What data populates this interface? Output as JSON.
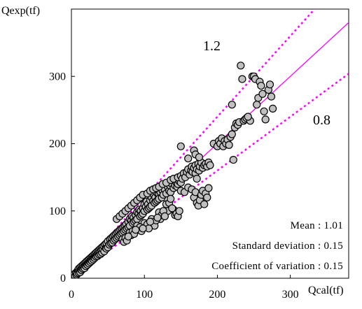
{
  "chart_data": {
    "type": "scatter",
    "xlabel": "Qcal(tf)",
    "ylabel": "Qexp(tf)",
    "xlim": [
      0,
      380
    ],
    "ylim": [
      0,
      400
    ],
    "xticks": [
      0,
      100,
      200,
      300
    ],
    "yticks": [
      0,
      100,
      200,
      300
    ],
    "grid": false,
    "reference_lines": [
      {
        "label": "",
        "slope": 1.0,
        "style": "solid",
        "color": "#ff00ff"
      },
      {
        "label": "1.2",
        "slope": 1.2,
        "style": "dotted",
        "color": "#ff00ff"
      },
      {
        "label": "0.8",
        "slope": 0.8,
        "style": "dotted",
        "color": "#ff00ff"
      }
    ],
    "marker": {
      "fill": "#c0c0c0",
      "stroke": "#000000"
    },
    "statistics": [
      {
        "label": "Mean",
        "value": "1.01"
      },
      {
        "label": "Standard deviation",
        "value": "0.15"
      },
      {
        "label": "Coefficient of variation",
        "value": "0.15"
      }
    ],
    "points": [
      [
        3,
        4
      ],
      [
        4,
        6
      ],
      [
        5,
        3
      ],
      [
        6,
        8
      ],
      [
        7,
        5
      ],
      [
        8,
        10
      ],
      [
        8,
        7
      ],
      [
        9,
        12
      ],
      [
        10,
        8
      ],
      [
        10,
        14
      ],
      [
        11,
        11
      ],
      [
        12,
        9
      ],
      [
        12,
        16
      ],
      [
        13,
        13
      ],
      [
        14,
        18
      ],
      [
        14,
        12
      ],
      [
        15,
        15
      ],
      [
        16,
        20
      ],
      [
        16,
        14
      ],
      [
        17,
        17
      ],
      [
        18,
        22
      ],
      [
        18,
        15
      ],
      [
        19,
        19
      ],
      [
        20,
        24
      ],
      [
        20,
        18
      ],
      [
        21,
        21
      ],
      [
        22,
        26
      ],
      [
        22,
        20
      ],
      [
        23,
        23
      ],
      [
        24,
        28
      ],
      [
        24,
        22
      ],
      [
        25,
        25
      ],
      [
        26,
        30
      ],
      [
        26,
        24
      ],
      [
        27,
        27
      ],
      [
        28,
        32
      ],
      [
        28,
        26
      ],
      [
        29,
        30
      ],
      [
        30,
        34
      ],
      [
        30,
        28
      ],
      [
        31,
        31
      ],
      [
        32,
        36
      ],
      [
        32,
        30
      ],
      [
        33,
        33
      ],
      [
        34,
        38
      ],
      [
        34,
        32
      ],
      [
        35,
        35
      ],
      [
        36,
        40
      ],
      [
        36,
        33
      ],
      [
        37,
        37
      ],
      [
        38,
        42
      ],
      [
        38,
        35
      ],
      [
        39,
        39
      ],
      [
        40,
        44
      ],
      [
        40,
        36
      ],
      [
        41,
        41
      ],
      [
        42,
        46
      ],
      [
        42,
        38
      ],
      [
        43,
        43
      ],
      [
        44,
        48
      ],
      [
        45,
        40
      ],
      [
        46,
        50
      ],
      [
        47,
        45
      ],
      [
        48,
        52
      ],
      [
        48,
        44
      ],
      [
        50,
        55
      ],
      [
        50,
        46
      ],
      [
        52,
        50
      ],
      [
        53,
        58
      ],
      [
        54,
        52
      ],
      [
        55,
        60
      ],
      [
        56,
        53
      ],
      [
        57,
        62
      ],
      [
        58,
        56
      ],
      [
        59,
        64
      ],
      [
        60,
        58
      ],
      [
        61,
        66
      ],
      [
        62,
        60
      ],
      [
        63,
        68
      ],
      [
        64,
        62
      ],
      [
        65,
        70
      ],
      [
        66,
        64
      ],
      [
        67,
        72
      ],
      [
        68,
        66
      ],
      [
        69,
        74
      ],
      [
        70,
        68
      ],
      [
        71,
        76
      ],
      [
        72,
        70
      ],
      [
        73,
        78
      ],
      [
        74,
        72
      ],
      [
        75,
        80
      ],
      [
        76,
        74
      ],
      [
        78,
        84
      ],
      [
        78,
        76
      ],
      [
        80,
        88
      ],
      [
        80,
        78
      ],
      [
        82,
        86
      ],
      [
        83,
        92
      ],
      [
        84,
        82
      ],
      [
        85,
        90
      ],
      [
        86,
        84
      ],
      [
        88,
        94
      ],
      [
        88,
        86
      ],
      [
        90,
        98
      ],
      [
        90,
        88
      ],
      [
        92,
        96
      ],
      [
        93,
        102
      ],
      [
        94,
        92
      ],
      [
        95,
        100
      ],
      [
        96,
        94
      ],
      [
        98,
        104
      ],
      [
        98,
        96
      ],
      [
        100,
        110
      ],
      [
        100,
        100
      ],
      [
        102,
        106
      ],
      [
        103,
        114
      ],
      [
        104,
        102
      ],
      [
        105,
        110
      ],
      [
        106,
        104
      ],
      [
        108,
        116
      ],
      [
        108,
        106
      ],
      [
        110,
        120
      ],
      [
        110,
        108
      ],
      [
        112,
        115
      ],
      [
        113,
        124
      ],
      [
        114,
        112
      ],
      [
        115,
        120
      ],
      [
        116,
        114
      ],
      [
        118,
        126
      ],
      [
        118,
        116
      ],
      [
        120,
        125
      ],
      [
        120,
        118
      ],
      [
        122,
        128
      ],
      [
        124,
        120
      ],
      [
        125,
        130
      ],
      [
        126,
        124
      ],
      [
        128,
        132
      ],
      [
        130,
        126
      ],
      [
        132,
        136
      ],
      [
        134,
        130
      ],
      [
        135,
        138
      ],
      [
        136,
        128
      ],
      [
        138,
        140
      ],
      [
        140,
        134
      ],
      [
        142,
        138
      ],
      [
        144,
        142
      ],
      [
        145,
        136
      ],
      [
        146,
        140
      ],
      [
        148,
        144
      ],
      [
        150,
        142
      ],
      [
        62,
        88
      ],
      [
        66,
        92
      ],
      [
        70,
        96
      ],
      [
        74,
        100
      ],
      [
        78,
        104
      ],
      [
        82,
        108
      ],
      [
        86,
        112
      ],
      [
        90,
        116
      ],
      [
        94,
        120
      ],
      [
        98,
        124
      ],
      [
        104,
        126
      ],
      [
        108,
        130
      ],
      [
        112,
        132
      ],
      [
        116,
        134
      ],
      [
        120,
        136
      ],
      [
        125,
        140
      ],
      [
        130,
        142
      ],
      [
        136,
        146
      ],
      [
        140,
        148
      ],
      [
        146,
        150
      ],
      [
        150,
        152
      ],
      [
        152,
        148
      ],
      [
        154,
        156
      ],
      [
        156,
        150
      ],
      [
        158,
        158
      ],
      [
        160,
        162
      ],
      [
        162,
        154
      ],
      [
        164,
        160
      ],
      [
        165,
        166
      ],
      [
        166,
        158
      ],
      [
        168,
        164
      ],
      [
        170,
        168
      ],
      [
        170,
        156
      ],
      [
        172,
        162
      ],
      [
        174,
        170
      ],
      [
        175,
        160
      ],
      [
        176,
        166
      ],
      [
        178,
        172
      ],
      [
        180,
        164
      ],
      [
        182,
        168
      ],
      [
        184,
        170
      ],
      [
        186,
        166
      ],
      [
        188,
        172
      ],
      [
        190,
        168
      ],
      [
        150,
        196
      ],
      [
        168,
        190
      ],
      [
        170,
        184
      ],
      [
        175,
        180
      ],
      [
        160,
        178
      ],
      [
        172,
        148
      ],
      [
        150,
        130
      ],
      [
        155,
        128
      ],
      [
        160,
        135
      ],
      [
        165,
        132
      ],
      [
        168,
        120
      ],
      [
        170,
        128
      ],
      [
        172,
        112
      ],
      [
        174,
        108
      ],
      [
        176,
        116
      ],
      [
        178,
        124
      ],
      [
        180,
        130
      ],
      [
        182,
        110
      ],
      [
        184,
        126
      ],
      [
        186,
        120
      ],
      [
        188,
        134
      ],
      [
        140,
        102
      ],
      [
        142,
        94
      ],
      [
        144,
        96
      ],
      [
        146,
        92
      ],
      [
        148,
        100
      ],
      [
        130,
        110
      ],
      [
        132,
        100
      ],
      [
        134,
        112
      ],
      [
        136,
        118
      ],
      [
        138,
        104
      ],
      [
        120,
        98
      ],
      [
        122,
        88
      ],
      [
        124,
        94
      ],
      [
        126,
        100
      ],
      [
        128,
        92
      ],
      [
        110,
        88
      ],
      [
        112,
        82
      ],
      [
        114,
        78
      ],
      [
        116,
        86
      ],
      [
        118,
        90
      ],
      [
        100,
        82
      ],
      [
        102,
        76
      ],
      [
        104,
        80
      ],
      [
        106,
        74
      ],
      [
        108,
        84
      ],
      [
        90,
        78
      ],
      [
        92,
        72
      ],
      [
        94,
        76
      ],
      [
        96,
        70
      ],
      [
        98,
        74
      ],
      [
        80,
        68
      ],
      [
        82,
        64
      ],
      [
        84,
        70
      ],
      [
        86,
        66
      ],
      [
        88,
        72
      ],
      [
        70,
        58
      ],
      [
        72,
        54
      ],
      [
        74,
        60
      ],
      [
        76,
        56
      ],
      [
        78,
        62
      ],
      [
        195,
        200
      ],
      [
        200,
        196
      ],
      [
        202,
        204
      ],
      [
        204,
        200
      ],
      [
        206,
        208
      ],
      [
        208,
        196
      ],
      [
        210,
        204
      ],
      [
        212,
        200
      ],
      [
        214,
        206
      ],
      [
        216,
        198
      ],
      [
        218,
        210
      ],
      [
        220,
        214
      ],
      [
        222,
        176
      ],
      [
        220,
        258
      ],
      [
        224,
        224
      ],
      [
        226,
        230
      ],
      [
        228,
        228
      ],
      [
        230,
        232
      ],
      [
        232,
        316
      ],
      [
        234,
        296
      ],
      [
        236,
        234
      ],
      [
        238,
        236
      ],
      [
        240,
        238
      ],
      [
        245,
        234
      ],
      [
        248,
        300
      ],
      [
        250,
        300
      ],
      [
        252,
        296
      ],
      [
        254,
        258
      ],
      [
        256,
        268
      ],
      [
        258,
        292
      ],
      [
        260,
        286
      ],
      [
        262,
        274
      ],
      [
        264,
        248
      ],
      [
        270,
        280
      ],
      [
        272,
        288
      ],
      [
        274,
        270
      ],
      [
        276,
        252
      ],
      [
        266,
        236
      ],
      [
        242,
        240
      ]
    ]
  }
}
